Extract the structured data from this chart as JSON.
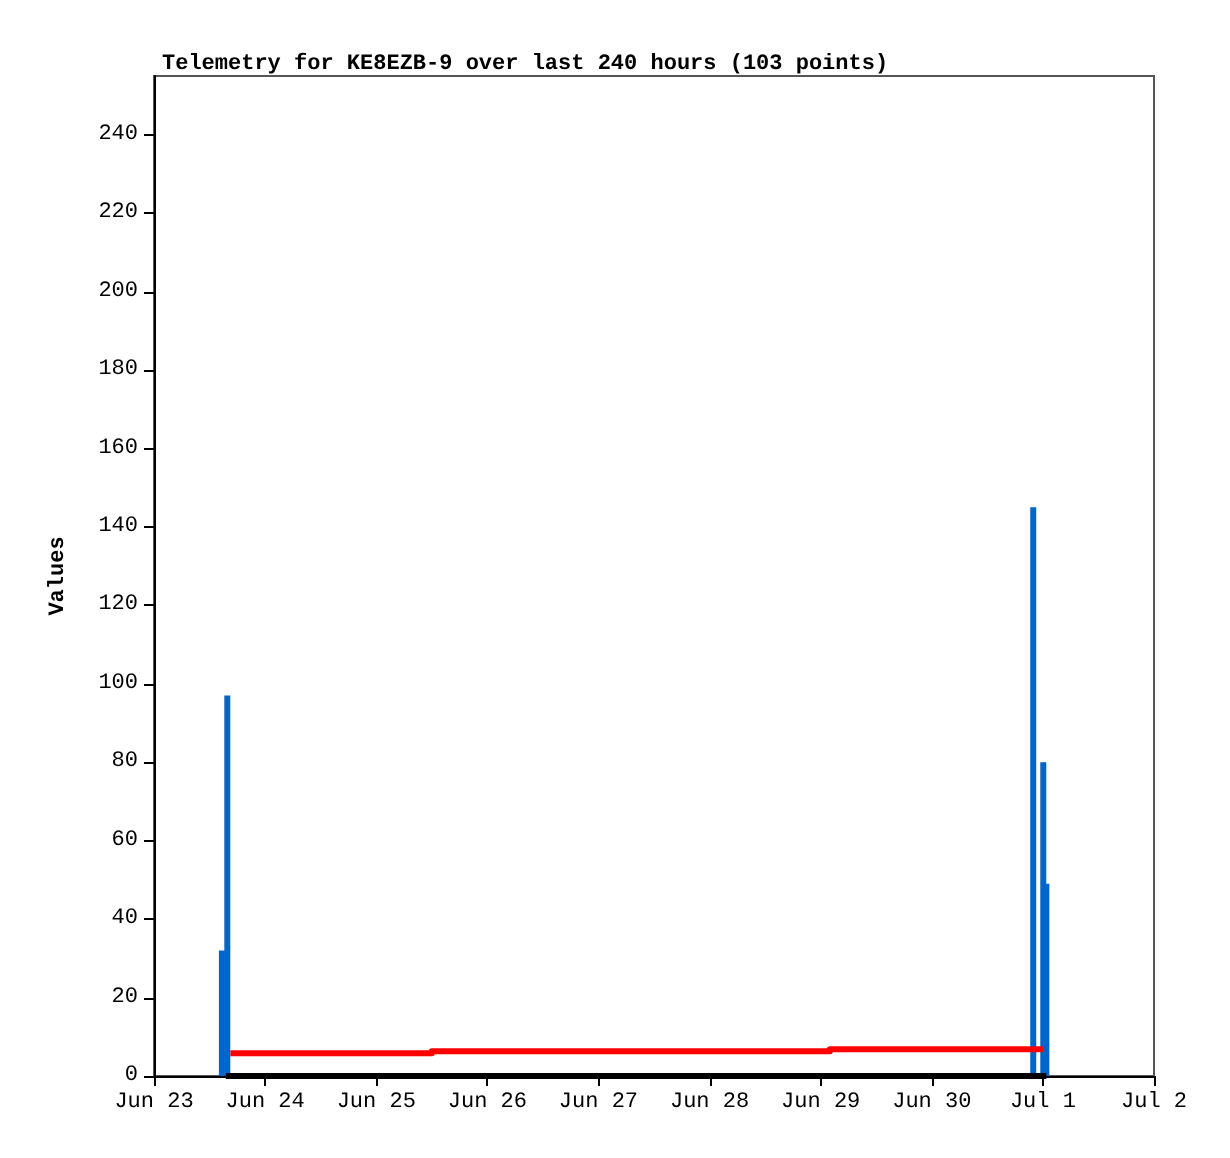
{
  "chart_data": {
    "type": "bar",
    "title": "Telemetry for KE8EZB-9 over last 240 hours (103 points)",
    "ylabel": "Values",
    "series": [
      {
        "color": "#0066cc",
        "x": [
          "--06-23T14:40",
          "--06-23T15:50",
          "--06-30T21:55",
          "--07-01T00:05",
          "--07-01T00:45"
        ],
        "values": [
          32,
          97,
          145,
          80,
          49
        ]
      },
      {
        "type": "step",
        "color": "#ff0000",
        "x": [
          "--06-23T16:30",
          "--06-25T12:00",
          "--06-29T02:00",
          "--07-01T00:00"
        ],
        "values": [
          5.8,
          6.3,
          6.8,
          6.8
        ]
      },
      {
        "type": "line",
        "color": "#000000",
        "x": [
          "--06-23T15:30",
          "--07-01T00:45"
        ],
        "values": [
          0,
          0
        ]
      }
    ],
    "xlim": [
      "--06-23",
      "--07-02"
    ],
    "xticks": [
      {
        "value": "--06-23",
        "label": "Jun 23"
      },
      {
        "value": "--06-24",
        "label": "Jun 24"
      },
      {
        "value": "--06-25",
        "label": "Jun 25"
      },
      {
        "value": "--06-26",
        "label": "Jun 26"
      },
      {
        "value": "--06-27",
        "label": "Jun 27"
      },
      {
        "value": "--06-28",
        "label": "Jun 28"
      },
      {
        "value": "--06-29",
        "label": "Jun 29"
      },
      {
        "value": "--06-30",
        "label": "Jun 30"
      },
      {
        "value": "--07-01",
        "label": "Jul 1"
      },
      {
        "value": "--07-02",
        "label": "Jul 2"
      }
    ],
    "ylim": [
      0,
      255
    ],
    "yticks": [
      0,
      20,
      40,
      60,
      80,
      100,
      120,
      140,
      160,
      180,
      200,
      220,
      240
    ],
    "grid": false
  }
}
